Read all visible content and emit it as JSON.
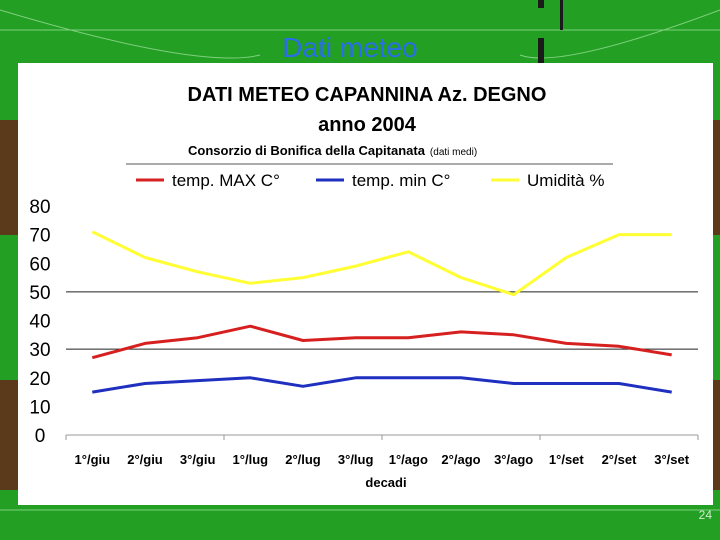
{
  "slide": {
    "title": "Dati meteo",
    "page_number": "24"
  },
  "chart_data": {
    "type": "line",
    "title": "DATI METEO CAPANNINA Az. DEGNO",
    "subtitle": "anno 2004",
    "source": "Consorzio di Bonifica della Capitanata",
    "source_note": "(dati medi)",
    "xlabel": "decadi",
    "ylabel": "",
    "ylim": [
      0,
      80
    ],
    "yticks": [
      0,
      10,
      20,
      30,
      40,
      50,
      60,
      70,
      80
    ],
    "grid": "horizontal line at 50 and 30",
    "legend_position": "top",
    "categories": [
      "1°/giu",
      "2°/giu",
      "3°/giu",
      "1°/lug",
      "2°/lug",
      "3°/lug",
      "1°/ago",
      "2°/ago",
      "3°/ago",
      "1°/set",
      "2°/set",
      "3°/set"
    ],
    "series": [
      {
        "name": "temp. MAX C°",
        "color": "#d62020",
        "values": [
          27,
          32,
          34,
          38,
          33,
          34,
          34,
          36,
          35,
          32,
          31,
          28
        ]
      },
      {
        "name": "temp. min C°",
        "color": "#1f2fbf",
        "values": [
          15,
          18,
          19,
          20,
          17,
          20,
          20,
          20,
          18,
          18,
          18,
          15
        ]
      },
      {
        "name": "Umidità %",
        "color": "#ffff33",
        "values": [
          71,
          62,
          57,
          53,
          55,
          59,
          64,
          55,
          49,
          62,
          70,
          70
        ]
      }
    ]
  }
}
